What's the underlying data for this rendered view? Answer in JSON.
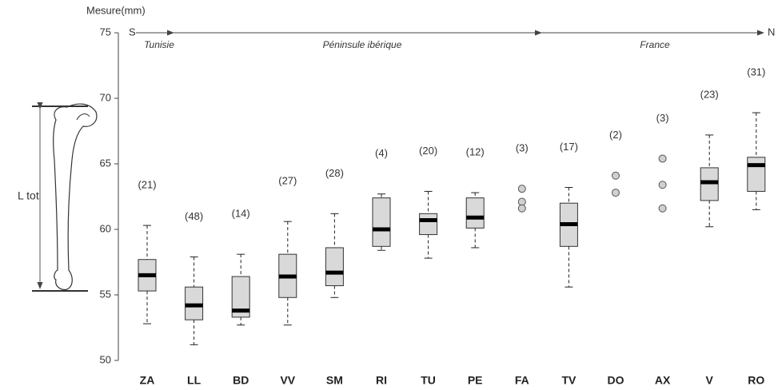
{
  "chart_data": {
    "type": "box",
    "y_label": "Mesure(mm)",
    "side_label": "L tot",
    "direction_start": "S",
    "direction_end": "N",
    "regions": [
      "Tunisie",
      "Péninsule ibérique",
      "France"
    ],
    "categories": [
      "ZA",
      "LL",
      "BD",
      "VV",
      "SM",
      "RI",
      "TU",
      "PE",
      "FA",
      "TV",
      "DO",
      "AX",
      "V",
      "RO"
    ],
    "count_labels": [
      "(21)",
      "(48)",
      "(14)",
      "(27)",
      "(28)",
      "(4)",
      "(20)",
      "(12)",
      "(3)",
      "(17)",
      "(2)",
      "(3)",
      "(23)",
      "(31)"
    ],
    "whisker_high": [
      60.3,
      57.9,
      58.1,
      60.6,
      61.2,
      62.7,
      62.9,
      62.8,
      null,
      63.2,
      null,
      null,
      67.2,
      68.9
    ],
    "q3": [
      57.7,
      55.6,
      56.4,
      58.1,
      58.6,
      62.4,
      61.2,
      62.4,
      null,
      62.0,
      null,
      null,
      64.7,
      65.5
    ],
    "median": [
      56.5,
      54.2,
      53.8,
      56.4,
      56.7,
      60.0,
      60.7,
      60.9,
      null,
      60.4,
      null,
      null,
      63.6,
      64.9
    ],
    "q1": [
      55.3,
      53.1,
      53.3,
      54.8,
      55.7,
      58.7,
      59.6,
      60.1,
      null,
      58.7,
      null,
      null,
      62.2,
      62.9
    ],
    "whisker_low": [
      52.8,
      51.2,
      52.7,
      52.7,
      54.8,
      58.4,
      57.8,
      58.6,
      null,
      55.6,
      null,
      null,
      60.2,
      61.5
    ],
    "points": [
      [],
      [],
      [],
      [],
      [],
      [],
      [],
      [],
      [
        63.1,
        62.1,
        61.6
      ],
      [],
      [
        64.1,
        62.8
      ],
      [
        65.4,
        63.4,
        61.6
      ],
      [],
      []
    ],
    "box_color": "#d9d9d9",
    "point_color": "#d0d0d0",
    "ylim": [
      50,
      75
    ],
    "yticks": [
      50,
      55,
      60,
      65,
      70,
      75
    ]
  }
}
